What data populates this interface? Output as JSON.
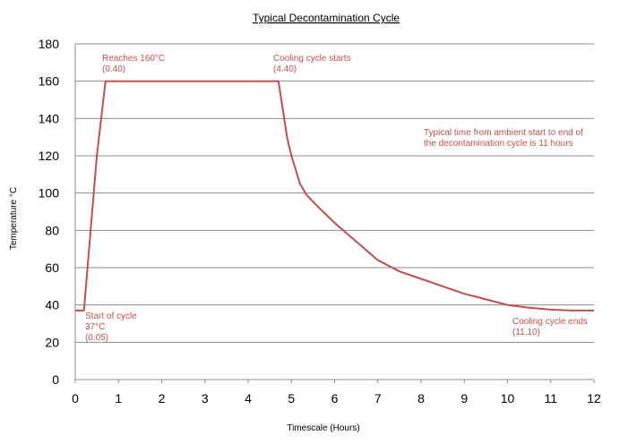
{
  "chart_data": {
    "type": "line",
    "title": "Typical Decontamination Cycle",
    "xlabel": "Timescale (Hours)",
    "ylabel": "Temperature °C",
    "xlim": [
      0,
      12
    ],
    "ylim": [
      0,
      180
    ],
    "x_ticks": [
      0,
      1,
      2,
      3,
      4,
      5,
      6,
      7,
      8,
      9,
      10,
      11,
      12
    ],
    "y_ticks": [
      0,
      20,
      40,
      60,
      80,
      100,
      120,
      140,
      160,
      180
    ],
    "grid": "horizontal",
    "series": [
      {
        "color": "#c0504d",
        "points": [
          [
            0.0,
            37
          ],
          [
            0.2,
            37
          ],
          [
            0.5,
            120
          ],
          [
            0.7,
            160
          ],
          [
            4.7,
            160
          ],
          [
            4.9,
            130
          ],
          [
            5.0,
            120
          ],
          [
            5.2,
            105
          ],
          [
            5.35,
            99
          ],
          [
            5.6,
            93
          ],
          [
            6.0,
            84
          ],
          [
            6.5,
            74
          ],
          [
            7.0,
            64
          ],
          [
            7.5,
            58
          ],
          [
            8.0,
            54
          ],
          [
            8.5,
            50
          ],
          [
            9.0,
            46
          ],
          [
            9.5,
            43
          ],
          [
            10.0,
            40
          ],
          [
            10.5,
            38.5
          ],
          [
            11.0,
            37.5
          ],
          [
            11.5,
            37
          ],
          [
            12.0,
            37
          ]
        ]
      }
    ],
    "annotations": [
      {
        "id": "start",
        "lines": [
          "Start of cycle",
          "37°C",
          "(0.05)"
        ],
        "color": "#c0504d"
      },
      {
        "id": "reaches",
        "lines": [
          "Reaches 160°C",
          "(0.40)"
        ],
        "color": "#c0504d"
      },
      {
        "id": "cooling-start",
        "lines": [
          "Cooling cycle starts",
          "(4.40)"
        ],
        "color": "#c0504d"
      },
      {
        "id": "note",
        "lines": [
          "Typical time from ambient start to end of",
          "the decontamination cycle is 11 hours"
        ],
        "color": "#c0504d"
      },
      {
        "id": "cooling-end",
        "lines": [
          "Cooling cycle ends",
          "(11.10)"
        ],
        "color": "#c0504d"
      }
    ]
  }
}
